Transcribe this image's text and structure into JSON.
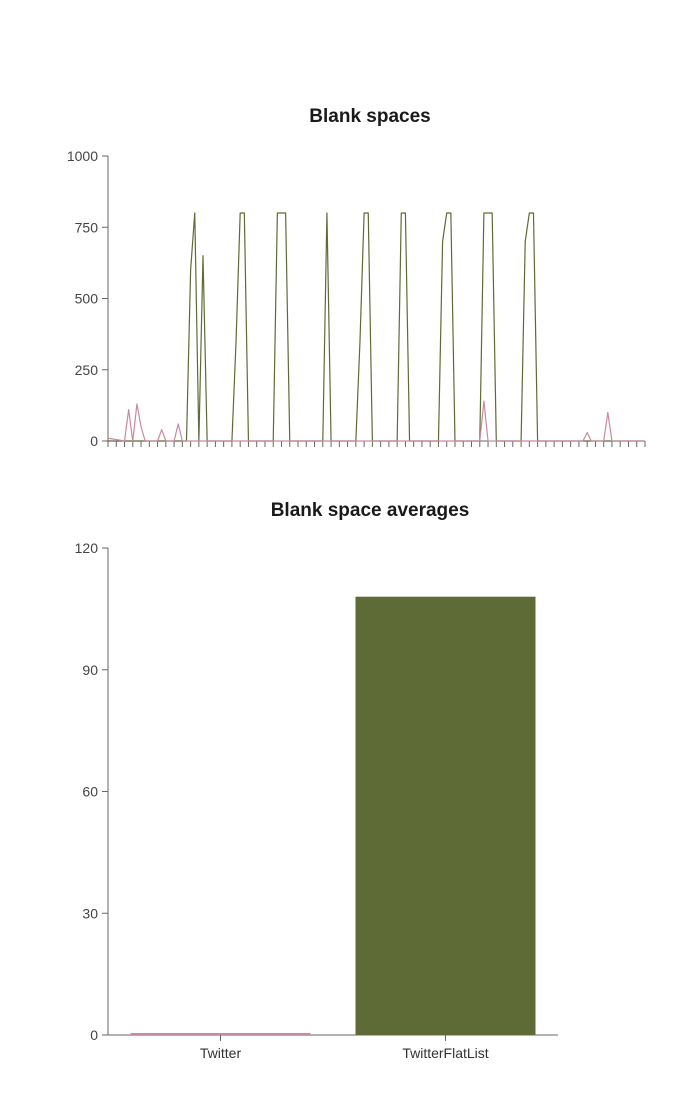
{
  "colors": {
    "twitter": "#c98aa0",
    "twitterflatlist": "#5e6b36",
    "axis": "#666666",
    "background": "#ffffff"
  },
  "chart_data": [
    {
      "type": "line",
      "title": "Blank spaces",
      "xlabel": "",
      "ylabel": "",
      "ylim": [
        0,
        1000
      ],
      "yticks": [
        0,
        250,
        500,
        750,
        1000
      ],
      "grid": false,
      "legend": "none",
      "series": [
        {
          "color": "#5e6b36",
          "points": [
            [
              0,
              0
            ],
            [
              18,
              0
            ],
            [
              19,
              0
            ],
            [
              20,
              600
            ],
            [
              21,
              800
            ],
            [
              22,
              0
            ],
            [
              23,
              650
            ],
            [
              24,
              0
            ],
            [
              30,
              0
            ],
            [
              31,
              350
            ],
            [
              32,
              800
            ],
            [
              33,
              800
            ],
            [
              34,
              0
            ],
            [
              40,
              0
            ],
            [
              41,
              800
            ],
            [
              42,
              800
            ],
            [
              43,
              800
            ],
            [
              44,
              0
            ],
            [
              52,
              0
            ],
            [
              53,
              800
            ],
            [
              54,
              0
            ],
            [
              60,
              0
            ],
            [
              61,
              350
            ],
            [
              62,
              800
            ],
            [
              63,
              800
            ],
            [
              64,
              0
            ],
            [
              70,
              0
            ],
            [
              71,
              800
            ],
            [
              72,
              800
            ],
            [
              73,
              0
            ],
            [
              80,
              0
            ],
            [
              81,
              700
            ],
            [
              82,
              800
            ],
            [
              83,
              800
            ],
            [
              84,
              0
            ],
            [
              90,
              0
            ],
            [
              91,
              800
            ],
            [
              92,
              800
            ],
            [
              93,
              800
            ],
            [
              94,
              0
            ],
            [
              100,
              0
            ],
            [
              101,
              700
            ],
            [
              102,
              800
            ],
            [
              103,
              800
            ],
            [
              104,
              0
            ],
            [
              130,
              0
            ]
          ]
        },
        {
          "color": "#c98aa0",
          "points": [
            [
              0,
              10
            ],
            [
              4,
              0
            ],
            [
              5,
              110
            ],
            [
              6,
              0
            ],
            [
              7,
              130
            ],
            [
              8,
              50
            ],
            [
              9,
              0
            ],
            [
              12,
              0
            ],
            [
              13,
              40
            ],
            [
              14,
              0
            ],
            [
              16,
              0
            ],
            [
              17,
              60
            ],
            [
              18,
              0
            ],
            [
              60,
              0
            ],
            [
              90,
              0
            ],
            [
              91,
              140
            ],
            [
              92,
              0
            ],
            [
              115,
              0
            ],
            [
              116,
              30
            ],
            [
              117,
              0
            ],
            [
              120,
              0
            ],
            [
              121,
              100
            ],
            [
              122,
              0
            ],
            [
              130,
              0
            ]
          ]
        }
      ]
    },
    {
      "type": "bar",
      "title": "Blank space averages",
      "xlabel": "",
      "ylabel": "",
      "ylim": [
        0,
        120
      ],
      "yticks": [
        0,
        30,
        60,
        90,
        120
      ],
      "categories": [
        "Twitter",
        "TwitterFlatList"
      ],
      "values": [
        0.5,
        108
      ],
      "colors": [
        "#c98aa0",
        "#5e6b36"
      ],
      "grid": false,
      "legend": "none"
    }
  ]
}
